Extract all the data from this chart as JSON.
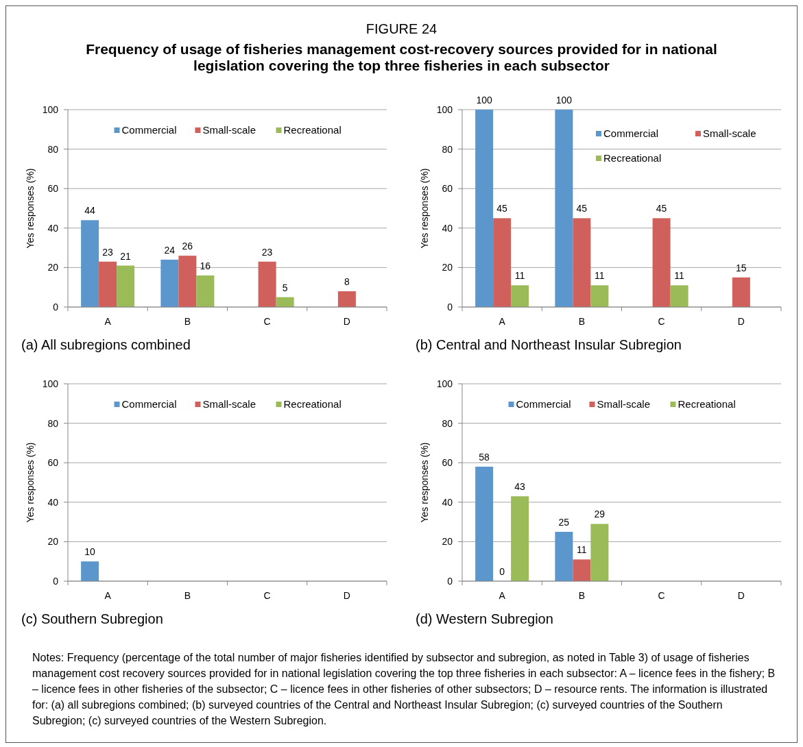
{
  "chart_data": [
    {
      "type": "bar",
      "title": "FIGURE 24",
      "subtitle": "Frequency of usage of fisheries management cost-recovery sources provided for in national legislation covering the top three fisheries in each subsector",
      "xlabel": "(a) All subregions combined",
      "ylabel": "Yes responses (%)",
      "categories": [
        "A",
        "B",
        "C",
        "D"
      ],
      "ylim": [
        0,
        100
      ],
      "yticks": [
        0,
        20,
        40,
        60,
        80,
        100
      ],
      "grid": "y",
      "legend": "top",
      "series": [
        {
          "name": "Commercial",
          "color": "#5b96cc",
          "values": [
            44,
            24,
            0,
            0
          ],
          "value_labels": [
            "44",
            "24",
            null,
            null
          ]
        },
        {
          "name": "Small-scale",
          "color": "#d0605c",
          "values": [
            23,
            26,
            23,
            8
          ],
          "value_labels": [
            "23",
            "26",
            "23",
            "8"
          ]
        },
        {
          "name": "Recreational",
          "color": "#9bbb59",
          "values": [
            21,
            16,
            5,
            0
          ],
          "value_labels": [
            "21",
            "16",
            "5",
            null
          ]
        }
      ]
    },
    {
      "type": "bar",
      "xlabel": "(b) Central and Northeast Insular Subregion",
      "ylabel": "Yes responses (%)",
      "categories": [
        "A",
        "B",
        "C",
        "D"
      ],
      "ylim": [
        0,
        100
      ],
      "yticks": [
        0,
        20,
        40,
        60,
        80,
        100
      ],
      "grid": "y",
      "legend": "top right",
      "series": [
        {
          "name": "Commercial",
          "color": "#5b96cc",
          "values": [
            100,
            100,
            0,
            0
          ],
          "value_labels": [
            "100",
            "100",
            null,
            null
          ]
        },
        {
          "name": "Small-scale",
          "color": "#d0605c",
          "values": [
            45,
            45,
            45,
            15
          ],
          "value_labels": [
            "45",
            "45",
            "45",
            "15"
          ]
        },
        {
          "name": "Recreational",
          "color": "#9bbb59",
          "values": [
            11,
            11,
            11,
            0
          ],
          "value_labels": [
            "11",
            "11",
            "11",
            null
          ]
        }
      ]
    },
    {
      "type": "bar",
      "xlabel": "(c) Southern Subregion",
      "ylabel": "Yes responses (%)",
      "categories": [
        "A",
        "B",
        "C",
        "D"
      ],
      "ylim": [
        0,
        100
      ],
      "yticks": [
        0,
        20,
        40,
        60,
        80,
        100
      ],
      "grid": "y",
      "legend": "top",
      "series": [
        {
          "name": "Commercial",
          "color": "#5b96cc",
          "values": [
            10,
            0,
            0,
            0
          ],
          "value_labels": [
            "10",
            null,
            null,
            null
          ]
        },
        {
          "name": "Small-scale",
          "color": "#d0605c",
          "values": [
            0,
            0,
            0,
            0
          ],
          "value_labels": [
            null,
            null,
            null,
            null
          ]
        },
        {
          "name": "Recreational",
          "color": "#9bbb59",
          "values": [
            0,
            0,
            0,
            0
          ],
          "value_labels": [
            null,
            null,
            null,
            null
          ]
        }
      ]
    },
    {
      "type": "bar",
      "xlabel": "(d) Western Subregion",
      "ylabel": "Yes responses (%)",
      "categories": [
        "A",
        "B",
        "C",
        "D"
      ],
      "ylim": [
        0,
        100
      ],
      "yticks": [
        0,
        20,
        40,
        60,
        80,
        100
      ],
      "grid": "y",
      "legend": "top",
      "annotations": [
        "Notes: Frequency (percentage of the total number of major fisheries identified by subsector and subregion, as noted in Table 3) of usage of fisheries management cost recovery sources provided for in national legislation covering the top three fisheries in each subsector: A – licence fees in the fishery; B – licence fees in other fisheries of the subsector; C – licence fees in other fisheries of other subsectors; D – resource rents. The information is illustrated for: (a) all subregions combined; (b) surveyed countries of the Central and Northeast Insular Subregion; (c) surveyed countries of the Southern Subregion; (c) surveyed countries of the Western Subregion."
      ],
      "series": [
        {
          "name": "Commercial",
          "color": "#5b96cc",
          "values": [
            58,
            25,
            0,
            0
          ],
          "value_labels": [
            "58",
            "25",
            null,
            null
          ]
        },
        {
          "name": "Small-scale",
          "color": "#d0605c",
          "values": [
            0,
            11,
            0,
            0
          ],
          "value_labels": [
            "0",
            "11",
            null,
            null
          ]
        },
        {
          "name": "Recreational",
          "color": "#9bbb59",
          "values": [
            43,
            29,
            0,
            0
          ],
          "value_labels": [
            "43",
            "29",
            null,
            null
          ]
        }
      ]
    }
  ]
}
